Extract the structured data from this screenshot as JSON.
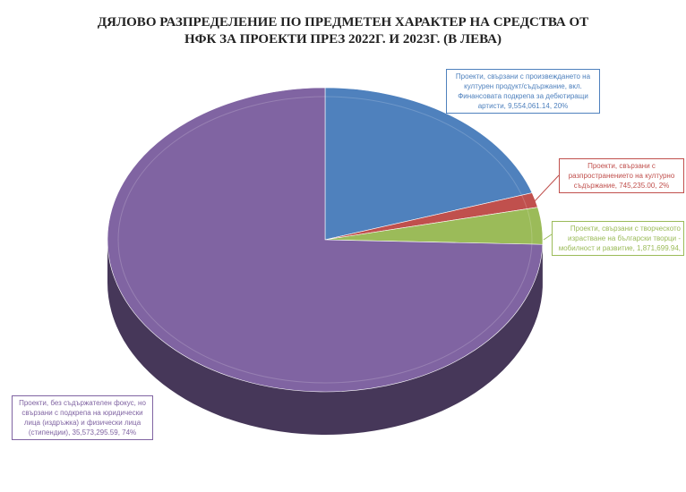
{
  "chart_data": {
    "type": "pie",
    "title_line1": "ДЯЛОВО РАЗПРЕДЕЛЕНИЕ ПО ПРЕДМЕТЕН ХАРАКТЕР НА СРЕДСТВА ОТ",
    "title_line2": "НФК ЗА ПРОЕКТИ ПРЕЗ 2022Г. И 2023Г. (В ЛЕВА)",
    "slices": [
      {
        "label": "Проекти, свързани с произвеждането на културен продукт/съдържание, вкл. Финансовата подкрепа за дебютиращи артисти, 9,554,061.14, 20%",
        "value": 9554061.14,
        "percent": 20,
        "color": "#4f81bd"
      },
      {
        "label": "Проекти, свързани с разпространението на културно съдържание, 745,235.00, 2%",
        "value": 745235.0,
        "percent": 2,
        "color": "#c0504d"
      },
      {
        "label": "Проекти, свързани с творческото израстване на български творци - мобилност и развитие, 1,871,699.94,",
        "value": 1871699.94,
        "percent": 4,
        "color": "#9bbb59"
      },
      {
        "label": "Проекти, без съдържателен фокус, но свързани с подкрепа на юридически лица (издръжка) и физически лица (стипендии), 35,573,295.59, 74%",
        "value": 35573295.59,
        "percent": 74,
        "color": "#8064a2"
      }
    ]
  }
}
